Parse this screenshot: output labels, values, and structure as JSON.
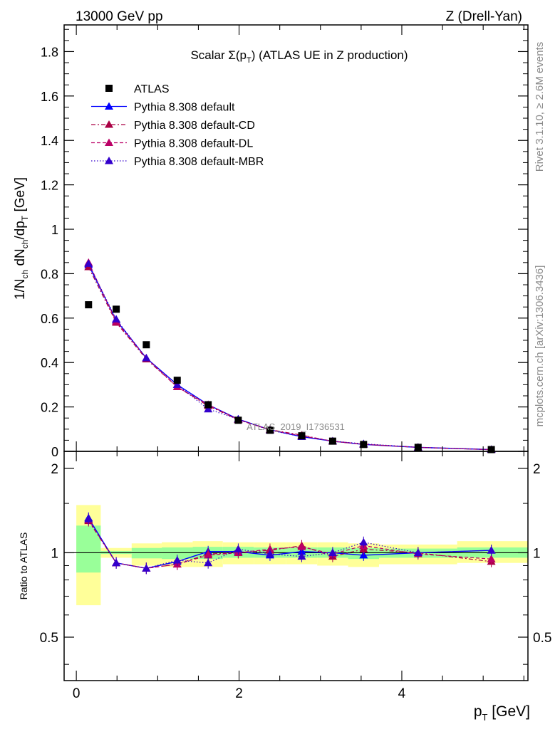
{
  "header": {
    "energy_label": "13000 GeV pp",
    "process_label": "Z (Drell-Yan)",
    "title_prefix": "Scalar Σ(p",
    "title_sub": "T",
    "title_suffix": ") (ATLAS UE in Z production)"
  },
  "side_labels": {
    "rivet": "Rivet 3.1.10, ≥ 2.6M events",
    "mcplots": "mcplots.cern.ch [arXiv:1306.3436]"
  },
  "watermark": "ATLAS_2019_I1736531",
  "colors": {
    "data": "#000000",
    "default": "#0000ff",
    "cd": "#aa0044",
    "dl": "#bb0066",
    "mbr": "#3300cc",
    "band_outer": "#ffff99",
    "band_inner": "#99ff99"
  },
  "chart_data": [
    {
      "type": "scatter",
      "panel": "main",
      "ylabel": "1/N_ch dN_ch/dp_T [GeV]",
      "xlim": [
        -0.15,
        5.55
      ],
      "ylim": [
        0,
        1.92
      ],
      "yticks": [
        {
          "value": 0,
          "label": "0"
        },
        {
          "value": 0.2,
          "label": "0.2"
        },
        {
          "value": 0.4,
          "label": "0.4"
        },
        {
          "value": 0.6,
          "label": "0.6"
        },
        {
          "value": 0.8,
          "label": "0.8"
        },
        {
          "value": 1.0,
          "label": "1"
        },
        {
          "value": 1.2,
          "label": "1.2"
        },
        {
          "value": 1.4,
          "label": "1.4"
        },
        {
          "value": 1.6,
          "label": "1.6"
        },
        {
          "value": 1.8,
          "label": "1.8"
        }
      ],
      "x": [
        0.15,
        0.49,
        0.86,
        1.24,
        1.62,
        1.99,
        2.38,
        2.77,
        3.15,
        3.53,
        4.2,
        5.1
      ],
      "series": [
        {
          "name": "ATLAS",
          "key": "data",
          "style": "marker",
          "values": [
            0.66,
            0.64,
            0.48,
            0.32,
            0.21,
            0.14,
            0.095,
            0.07,
            0.046,
            0.031,
            0.018,
            0.008
          ]
        },
        {
          "name": "Pythia 8.308 default",
          "key": "default",
          "style": "solid",
          "values": [
            0.84,
            0.59,
            0.42,
            0.3,
            0.21,
            0.145,
            0.097,
            0.066,
            0.046,
            0.031,
            0.018,
            0.008
          ]
        },
        {
          "name": "Pythia 8.308 default-CD",
          "key": "cd",
          "style": "dashdot",
          "values": [
            0.83,
            0.58,
            0.415,
            0.29,
            0.205,
            0.142,
            0.098,
            0.073,
            0.045,
            0.032,
            0.018,
            0.0075
          ]
        },
        {
          "name": "Pythia 8.308 default-DL",
          "key": "dl",
          "style": "dashed",
          "values": [
            0.85,
            0.585,
            0.42,
            0.29,
            0.21,
            0.143,
            0.096,
            0.07,
            0.046,
            0.032,
            0.018,
            0.0075
          ]
        },
        {
          "name": "Pythia 8.308 default-MBR",
          "key": "mbr",
          "style": "dotted",
          "values": [
            0.845,
            0.595,
            0.42,
            0.3,
            0.19,
            0.145,
            0.095,
            0.066,
            0.046,
            0.034,
            0.018,
            0.008
          ]
        }
      ]
    },
    {
      "type": "line",
      "panel": "ratio",
      "xlabel": "p_T [GeV]",
      "ylabel": "Ratio to ATLAS",
      "xlim": [
        -0.15,
        5.55
      ],
      "ylim": [
        0.35,
        2.3
      ],
      "yticks": [
        {
          "value": 0.5,
          "label": "0.5"
        },
        {
          "value": 1,
          "label": "1"
        },
        {
          "value": 2,
          "label": "2"
        }
      ],
      "xticks": [
        {
          "value": 0,
          "label": "0"
        },
        {
          "value": 2,
          "label": "2"
        },
        {
          "value": 4,
          "label": "4"
        }
      ],
      "x": [
        0.15,
        0.49,
        0.86,
        1.24,
        1.62,
        1.99,
        2.38,
        2.77,
        3.15,
        3.53,
        4.2,
        5.1
      ],
      "bins": [
        0,
        0.3,
        0.68,
        1.05,
        1.43,
        1.8,
        2.18,
        2.58,
        2.96,
        3.34,
        3.72,
        4.68,
        5.55
      ],
      "band_outer": [
        [
          0.65,
          1.48
        ],
        [
          0.96,
          1.04
        ],
        [
          0.9,
          1.08
        ],
        [
          0.89,
          1.09
        ],
        [
          0.89,
          1.1
        ],
        [
          0.91,
          1.09
        ],
        [
          0.91,
          1.09
        ],
        [
          0.91,
          1.09
        ],
        [
          0.9,
          1.09
        ],
        [
          0.89,
          1.08
        ],
        [
          0.91,
          1.07
        ],
        [
          0.92,
          1.1
        ]
      ],
      "band_inner": [
        [
          0.85,
          1.25
        ],
        [
          0.99,
          1.015
        ],
        [
          0.955,
          1.04
        ],
        [
          0.95,
          1.045
        ],
        [
          0.95,
          1.05
        ],
        [
          0.96,
          1.05
        ],
        [
          0.96,
          1.045
        ],
        [
          0.96,
          1.045
        ],
        [
          0.96,
          1.045
        ],
        [
          0.95,
          1.04
        ],
        [
          0.96,
          1.035
        ],
        [
          0.96,
          1.045
        ]
      ],
      "series": [
        {
          "name": "Pythia 8.308 default",
          "key": "default",
          "style": "solid",
          "values": [
            1.33,
            0.92,
            0.88,
            0.93,
            1.01,
            1.01,
            0.98,
            1.01,
            1.0,
            0.98,
            1.0,
            1.02
          ]
        },
        {
          "name": "Pythia 8.308 default-CD",
          "key": "cd",
          "style": "dashdot",
          "values": [
            1.3,
            0.92,
            0.88,
            0.91,
            0.99,
            1.0,
            1.02,
            1.06,
            0.97,
            1.03,
            1.0,
            0.93
          ]
        },
        {
          "name": "Pythia 8.308 default-DL",
          "key": "dl",
          "style": "dashed",
          "values": [
            1.31,
            0.92,
            0.88,
            0.91,
            0.98,
            1.0,
            1.03,
            1.05,
            0.99,
            1.06,
            0.99,
            0.95
          ]
        },
        {
          "name": "Pythia 8.308 default-MBR",
          "key": "mbr",
          "style": "dotted",
          "values": [
            1.32,
            0.92,
            0.88,
            0.94,
            0.92,
            1.03,
            0.99,
            0.97,
            1.0,
            1.09,
            1.0,
            1.02
          ]
        }
      ]
    }
  ]
}
